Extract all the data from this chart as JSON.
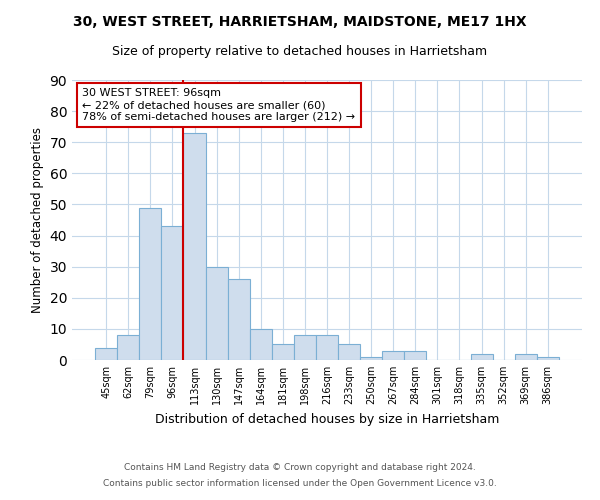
{
  "title": "30, WEST STREET, HARRIETSHAM, MAIDSTONE, ME17 1HX",
  "subtitle": "Size of property relative to detached houses in Harrietsham",
  "xlabel": "Distribution of detached houses by size in Harrietsham",
  "ylabel": "Number of detached properties",
  "bar_labels": [
    "45sqm",
    "62sqm",
    "79sqm",
    "96sqm",
    "113sqm",
    "130sqm",
    "147sqm",
    "164sqm",
    "181sqm",
    "198sqm",
    "216sqm",
    "233sqm",
    "250sqm",
    "267sqm",
    "284sqm",
    "301sqm",
    "318sqm",
    "335sqm",
    "352sqm",
    "369sqm",
    "386sqm"
  ],
  "bar_values": [
    4,
    8,
    49,
    43,
    73,
    30,
    26,
    10,
    5,
    8,
    8,
    5,
    1,
    3,
    3,
    0,
    0,
    2,
    0,
    2,
    1
  ],
  "bar_color": "#cfdded",
  "bar_edge_color": "#7bafd4",
  "vline_x_index": 3,
  "vline_color": "#cc0000",
  "ylim": [
    0,
    90
  ],
  "yticks": [
    0,
    10,
    20,
    30,
    40,
    50,
    60,
    70,
    80,
    90
  ],
  "annotation_title": "30 WEST STREET: 96sqm",
  "annotation_line1": "← 22% of detached houses are smaller (60)",
  "annotation_line2": "78% of semi-detached houses are larger (212) →",
  "annotation_box_color": "#ffffff",
  "annotation_box_edge": "#cc0000",
  "footer1": "Contains HM Land Registry data © Crown copyright and database right 2024.",
  "footer2": "Contains public sector information licensed under the Open Government Licence v3.0."
}
